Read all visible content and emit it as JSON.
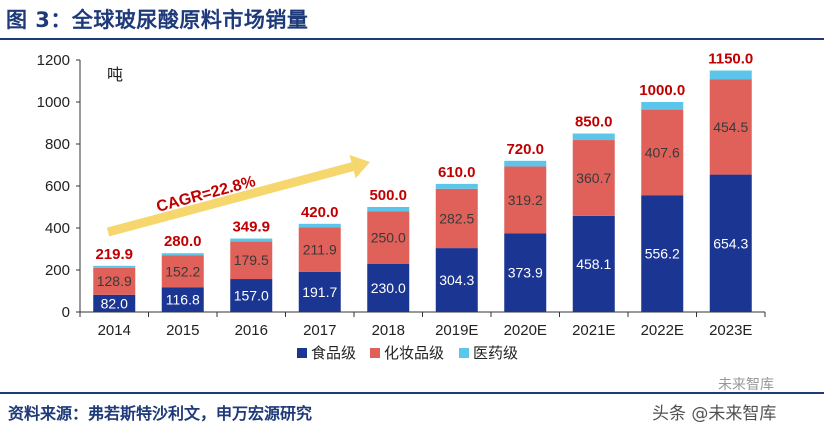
{
  "figure_title": "图 3：全球玻尿酸原料市场销量",
  "source": "资料来源：弗若斯特沙利文，申万宏源研究",
  "watermark": "头条 @未来智库",
  "watermark_badge": "未来智库",
  "colors": {
    "food": "#1b3592",
    "cosmetic": "#e0605a",
    "medical": "#5cc6ea",
    "total_label": "#c00000",
    "cagr_text": "#c00000",
    "arrow": "#f5d76e",
    "title": "#1f3a7a"
  },
  "chart_data": {
    "type": "bar",
    "stacked": true,
    "unit_label": "吨",
    "categories": [
      "2014",
      "2015",
      "2016",
      "2017",
      "2018",
      "2019E",
      "2020E",
      "2021E",
      "2022E",
      "2023E"
    ],
    "series": [
      {
        "name": "食品级",
        "values": [
          82.0,
          116.8,
          157.0,
          191.7,
          230.0,
          304.3,
          373.9,
          458.1,
          556.2,
          654.3
        ],
        "labels": [
          "82.0",
          "116.8",
          "157.0",
          "191.7",
          "230.0",
          "304.3",
          "373.9",
          "458.1",
          "556.2",
          "654.3"
        ]
      },
      {
        "name": "化妆品级",
        "values": [
          128.9,
          152.2,
          179.5,
          211.9,
          250.0,
          282.5,
          319.2,
          360.7,
          407.6,
          454.5
        ],
        "labels": [
          "128.9",
          "152.2",
          "179.5",
          "211.9",
          "250.0",
          "282.5",
          "319.2",
          "360.7",
          "407.6",
          "454.5"
        ]
      },
      {
        "name": "医药级",
        "values": [
          9.0,
          11.0,
          13.4,
          16.4,
          20.0,
          23.2,
          26.9,
          31.2,
          36.2,
          41.2
        ]
      }
    ],
    "totals": [
      "219.9",
      "280.0",
      "349.9",
      "420.0",
      "500.0",
      "610.0",
      "720.0",
      "850.0",
      "1000.0",
      "1150.0"
    ],
    "total_values": [
      219.9,
      280.0,
      349.9,
      420.0,
      500.0,
      610.0,
      720.0,
      850.0,
      1000.0,
      1150.0
    ],
    "ylim": [
      0,
      1200
    ],
    "yticks": [
      "0",
      "200",
      "400",
      "600",
      "800",
      "1000",
      "1200"
    ],
    "ytick_values": [
      0,
      200,
      400,
      600,
      800,
      1000,
      1200
    ],
    "annotation": "CAGR=22.8%",
    "legend_position": "bottom",
    "grid": false
  }
}
